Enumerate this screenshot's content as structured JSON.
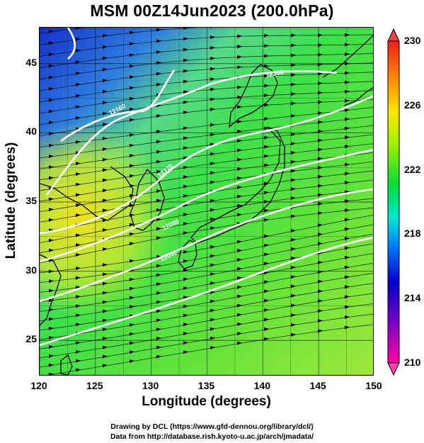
{
  "title": "MSM 00Z14Jun2023 (200.0hPa)",
  "axes": {
    "xlabel": "Longitude (degrees)",
    "ylabel": "Latitude  (degrees)",
    "xticks": [
      "120",
      "125",
      "130",
      "135",
      "140",
      "145",
      "150"
    ],
    "yticks": [
      "45",
      "40",
      "35",
      "30",
      "25"
    ],
    "xlim": [
      120,
      150
    ],
    "ylim": [
      22.4,
      47.6
    ]
  },
  "colorbar": {
    "ticks": [
      "230",
      "226",
      "222",
      "218",
      "214",
      "210"
    ],
    "range": [
      210,
      230
    ],
    "colors": [
      "#ff00a0",
      "#0000c8",
      "#0078ff",
      "#00e6d2",
      "#00dc3c",
      "#a0f000",
      "#ffe600",
      "#ff8c00",
      "#f01e1e"
    ]
  },
  "contour_labels": [
    "12200",
    "12160",
    "12120",
    "12080",
    "12040"
  ],
  "credits": {
    "line1": "Drawing by DCL (https://www.gfd-dennou.org/library/dcl/)",
    "line2": "Data from http://database.rish.kyoto-u.ac.jp/arch/jmadata/"
  }
}
